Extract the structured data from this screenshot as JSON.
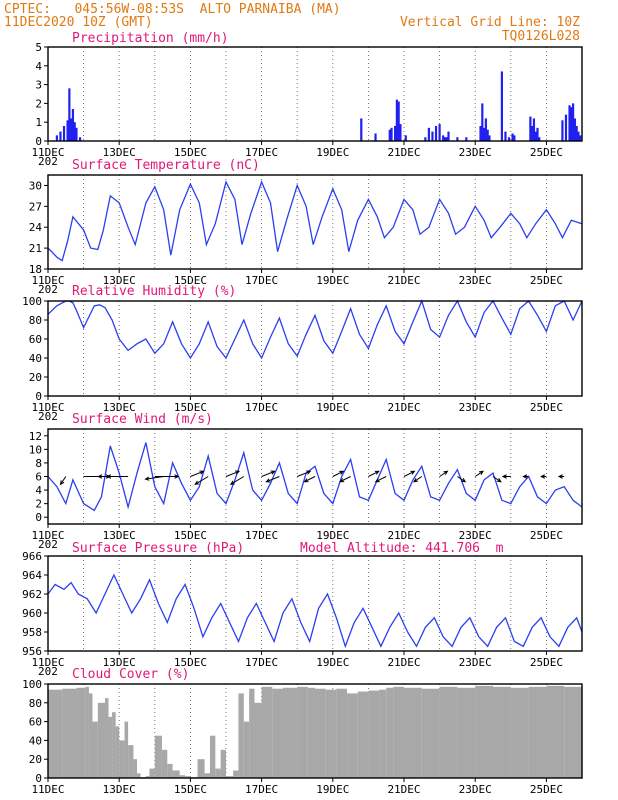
{
  "header": {
    "line1": "CPTEC:   045:56W-08:53S  ALTO PARNAIBA (MA)",
    "line2_left": "11DEC2020 10Z (GMT)",
    "line2_right": "Vertical Grid Line: 10Z",
    "line3_right": "TQ0126L028",
    "model_altitude": "Model Altitude: 441.706  m"
  },
  "colors": {
    "header": "#e07a14",
    "title": "#e0187a",
    "line": "#2b3ff0",
    "bar": "#2020f0",
    "cloud": "#a8a8a8"
  },
  "x_axis": {
    "day_range": [
      0,
      15
    ],
    "tick_days": [
      0,
      2,
      4,
      6,
      8,
      10,
      12,
      14
    ],
    "tick_labels": [
      "11DEC",
      "13DEC",
      "15DEC",
      "17DEC",
      "19DEC",
      "21DEC",
      "23DEC",
      "25DEC"
    ],
    "overflow_label": "202"
  },
  "chart_data": [
    {
      "id": "precip",
      "type": "bar",
      "title": "Precipitation (mm/h)",
      "ylim": [
        0,
        5
      ],
      "yticks": [
        0,
        1,
        2,
        3,
        4,
        5
      ],
      "x": [
        0.25,
        0.35,
        0.45,
        0.55,
        0.6,
        0.65,
        0.7,
        0.75,
        0.8,
        0.9,
        8.8,
        9.2,
        9.6,
        9.65,
        9.75,
        9.8,
        9.85,
        9.9,
        10.05,
        10.6,
        10.7,
        10.8,
        10.9,
        11.0,
        11.1,
        11.15,
        11.2,
        11.25,
        11.5,
        11.75,
        12.15,
        12.2,
        12.25,
        12.3,
        12.35,
        12.4,
        12.75,
        12.85,
        12.95,
        13.05,
        13.1,
        13.55,
        13.6,
        13.65,
        13.7,
        13.75,
        13.8,
        14.45,
        14.55,
        14.65,
        14.7,
        14.75,
        14.8,
        14.85,
        14.9,
        14.95
      ],
      "values": [
        0.3,
        0.5,
        0.8,
        1.1,
        2.8,
        1.2,
        1.7,
        1.0,
        0.7,
        0.2,
        1.2,
        0.4,
        0.6,
        0.7,
        0.8,
        2.2,
        2.1,
        0.9,
        0.3,
        0.2,
        0.7,
        0.5,
        0.8,
        0.9,
        0.3,
        0.2,
        0.2,
        0.5,
        0.2,
        0.2,
        0.8,
        2.0,
        0.7,
        1.2,
        0.6,
        0.3,
        3.7,
        0.5,
        0.2,
        0.4,
        0.3,
        1.3,
        0.8,
        1.2,
        0.5,
        0.7,
        0.2,
        1.1,
        1.4,
        1.9,
        1.8,
        2.0,
        1.2,
        0.8,
        0.5,
        0.3
      ]
    },
    {
      "id": "temp",
      "type": "line",
      "title": "Surface Temperature (nC)",
      "ylim": [
        18,
        31.5
      ],
      "yticks": [
        18,
        21,
        24,
        27,
        30
      ],
      "x": [
        0.0,
        0.1,
        0.25,
        0.4,
        0.55,
        0.7,
        1.0,
        1.2,
        1.4,
        1.55,
        1.75,
        2.0,
        2.25,
        2.45,
        2.75,
        3.0,
        3.25,
        3.45,
        3.7,
        4.0,
        4.25,
        4.45,
        4.7,
        5.0,
        5.25,
        5.45,
        5.7,
        6.0,
        6.25,
        6.45,
        6.7,
        7.0,
        7.25,
        7.45,
        7.7,
        8.0,
        8.25,
        8.45,
        8.7,
        9.0,
        9.25,
        9.45,
        9.7,
        10.0,
        10.25,
        10.45,
        10.7,
        11.0,
        11.25,
        11.45,
        11.7,
        12.0,
        12.25,
        12.45,
        12.7,
        13.0,
        13.25,
        13.45,
        13.7,
        14.0,
        14.25,
        14.45,
        14.7,
        15.0
      ],
      "values": [
        21.0,
        20.5,
        19.7,
        19.2,
        22.0,
        25.5,
        23.6,
        21.0,
        20.8,
        23.5,
        28.5,
        27.5,
        24.0,
        21.5,
        27.5,
        29.8,
        26.5,
        20.0,
        26.5,
        30.2,
        27.5,
        21.5,
        24.5,
        30.5,
        28.0,
        21.5,
        26.0,
        30.5,
        27.5,
        20.5,
        25.0,
        30.0,
        27.0,
        21.5,
        25.5,
        29.5,
        26.5,
        20.5,
        25.0,
        28.0,
        25.5,
        22.5,
        24.0,
        28.0,
        26.5,
        23.0,
        24.0,
        28.0,
        26.0,
        23.0,
        24.0,
        27.0,
        25.0,
        22.5,
        24.0,
        26.0,
        24.5,
        22.5,
        24.5,
        26.5,
        24.5,
        22.5,
        25.0,
        24.5
      ]
    },
    {
      "id": "rh",
      "type": "line",
      "title": "Relative Humidity (%)",
      "ylim": [
        0,
        100
      ],
      "yticks": [
        0,
        20,
        40,
        60,
        80,
        100
      ],
      "x": [
        0.0,
        0.25,
        0.5,
        0.6,
        0.7,
        0.8,
        1.0,
        1.3,
        1.45,
        1.6,
        1.8,
        2.0,
        2.25,
        2.5,
        2.75,
        3.0,
        3.25,
        3.5,
        3.75,
        4.0,
        4.25,
        4.5,
        4.75,
        5.0,
        5.25,
        5.5,
        5.75,
        6.0,
        6.25,
        6.5,
        6.75,
        7.0,
        7.25,
        7.5,
        7.75,
        8.0,
        8.25,
        8.5,
        8.75,
        9.0,
        9.25,
        9.5,
        9.75,
        10.0,
        10.25,
        10.5,
        10.75,
        11.0,
        11.25,
        11.5,
        11.75,
        12.0,
        12.25,
        12.5,
        12.75,
        13.0,
        13.25,
        13.5,
        13.75,
        14.0,
        14.25,
        14.5,
        14.75,
        15.0
      ],
      "values": [
        86,
        95,
        100,
        100,
        98,
        90,
        72,
        95,
        96,
        93,
        80,
        60,
        48,
        55,
        60,
        45,
        55,
        78,
        55,
        40,
        55,
        78,
        52,
        40,
        60,
        80,
        55,
        40,
        62,
        82,
        55,
        42,
        65,
        85,
        58,
        45,
        68,
        92,
        65,
        50,
        75,
        95,
        68,
        55,
        78,
        100,
        70,
        62,
        85,
        100,
        78,
        62,
        88,
        100,
        82,
        65,
        92,
        100,
        85,
        68,
        95,
        100,
        80,
        100
      ]
    },
    {
      "id": "wind",
      "type": "line",
      "title": "Surface Wind (m/s)",
      "ylim": [
        -1,
        13
      ],
      "yticks": [
        0,
        2,
        4,
        6,
        8,
        10,
        12
      ],
      "x": [
        0.0,
        0.25,
        0.5,
        0.7,
        1.0,
        1.3,
        1.5,
        1.75,
        2.0,
        2.25,
        2.5,
        2.75,
        3.0,
        3.25,
        3.5,
        3.75,
        4.0,
        4.25,
        4.5,
        4.75,
        5.0,
        5.25,
        5.5,
        5.75,
        6.0,
        6.25,
        6.5,
        6.75,
        7.0,
        7.25,
        7.5,
        7.75,
        8.0,
        8.25,
        8.5,
        8.75,
        9.0,
        9.25,
        9.5,
        9.75,
        10.0,
        10.25,
        10.5,
        10.75,
        11.0,
        11.25,
        11.5,
        11.75,
        12.0,
        12.25,
        12.5,
        12.75,
        13.0,
        13.25,
        13.5,
        13.75,
        14.0,
        14.25,
        14.5,
        14.75,
        15.0
      ],
      "values": [
        6.0,
        4.5,
        2.0,
        5.5,
        2.0,
        1.0,
        3.0,
        10.5,
        6.5,
        1.5,
        6.5,
        11.0,
        4.5,
        2.0,
        8.0,
        5.0,
        2.5,
        4.5,
        9.0,
        3.5,
        2.0,
        5.5,
        9.5,
        4.0,
        2.5,
        5.0,
        8.0,
        3.5,
        2.0,
        6.5,
        7.5,
        3.5,
        2.0,
        6.0,
        8.5,
        3.0,
        2.5,
        5.5,
        8.5,
        3.5,
        2.5,
        5.5,
        7.5,
        3.0,
        2.5,
        5.0,
        7.0,
        3.5,
        2.5,
        5.5,
        6.5,
        2.5,
        2.0,
        4.5,
        6.0,
        3.0,
        2.0,
        4.0,
        4.5,
        2.5,
        1.5
      ],
      "vectors": {
        "x": [
          0.5,
          1.0,
          2.0,
          2.25,
          3.0,
          3.25,
          4.0,
          4.5,
          5.0,
          5.5,
          6.0,
          6.5,
          7.0,
          7.5,
          8.0,
          8.5,
          9.0,
          9.5,
          10.0,
          10.5,
          11.0,
          11.5,
          12.0,
          12.5,
          13.0,
          13.5,
          14.0,
          14.5
        ],
        "u": [
          -2,
          10,
          -8,
          -8,
          9,
          -7,
          5,
          -5,
          5,
          -5,
          5,
          -5,
          5,
          -4,
          4,
          -4,
          4,
          -4,
          4,
          -3,
          3,
          3,
          3,
          3,
          -3,
          -2,
          -2,
          -2
        ],
        "v": [
          -3,
          0,
          0,
          0,
          0,
          -1,
          2,
          -3,
          2,
          -3,
          2,
          -2,
          2,
          -2,
          2,
          -2,
          2,
          -2,
          2,
          -2,
          2,
          -2,
          2,
          -2,
          0,
          0,
          0,
          0
        ]
      }
    },
    {
      "id": "pres",
      "type": "line",
      "title": "Surface Pressure (hPa)",
      "ylim": [
        956,
        966
      ],
      "yticks": [
        956,
        958,
        960,
        962,
        964,
        966
      ],
      "x": [
        0.0,
        0.2,
        0.45,
        0.65,
        0.85,
        1.1,
        1.35,
        1.6,
        1.85,
        2.1,
        2.35,
        2.6,
        2.85,
        3.1,
        3.35,
        3.6,
        3.85,
        4.1,
        4.35,
        4.6,
        4.85,
        5.1,
        5.35,
        5.6,
        5.85,
        6.1,
        6.35,
        6.6,
        6.85,
        7.1,
        7.35,
        7.6,
        7.85,
        8.1,
        8.35,
        8.6,
        8.85,
        9.1,
        9.35,
        9.6,
        9.85,
        10.1,
        10.35,
        10.6,
        10.85,
        11.1,
        11.35,
        11.6,
        11.85,
        12.1,
        12.35,
        12.6,
        12.85,
        13.1,
        13.35,
        13.6,
        13.85,
        14.1,
        14.35,
        14.6,
        14.85,
        15.0
      ],
      "values": [
        962.0,
        963.0,
        962.5,
        963.2,
        962.0,
        961.5,
        960.0,
        962.0,
        964.0,
        962.0,
        960.0,
        961.5,
        963.5,
        961.0,
        959.0,
        961.5,
        963.0,
        960.5,
        957.5,
        959.5,
        961.0,
        959.0,
        957.0,
        959.5,
        961.0,
        959.0,
        957.0,
        960.0,
        961.5,
        959.0,
        957.0,
        960.5,
        962.0,
        959.5,
        956.5,
        959.0,
        960.5,
        958.5,
        956.5,
        958.5,
        960.0,
        958.0,
        956.5,
        958.5,
        959.5,
        957.5,
        956.5,
        958.5,
        959.5,
        957.5,
        956.5,
        958.5,
        959.5,
        957.0,
        956.5,
        958.5,
        959.5,
        957.5,
        956.5,
        958.5,
        959.5,
        958.0
      ]
    },
    {
      "id": "cloud",
      "type": "area",
      "title": "Cloud Cover (%)",
      "ylim": [
        0,
        100
      ],
      "yticks": [
        0,
        20,
        40,
        60,
        80,
        100
      ],
      "x": [
        0.0,
        0.4,
        0.8,
        1.05,
        1.15,
        1.25,
        1.4,
        1.6,
        1.7,
        1.8,
        1.9,
        2.0,
        2.15,
        2.25,
        2.4,
        2.5,
        2.6,
        2.75,
        2.85,
        3.0,
        3.2,
        3.35,
        3.5,
        3.7,
        3.85,
        4.0,
        4.2,
        4.4,
        4.55,
        4.7,
        4.85,
        5.0,
        5.2,
        5.35,
        5.5,
        5.65,
        5.8,
        6.0,
        6.3,
        6.6,
        7.0,
        7.3,
        7.5,
        7.8,
        8.1,
        8.4,
        8.7,
        9.0,
        9.3,
        9.5,
        9.7,
        10.0,
        10.5,
        11.0,
        11.5,
        12.0,
        12.5,
        13.0,
        13.5,
        14.0,
        14.5,
        15.0
      ],
      "values": [
        94,
        95,
        96,
        97,
        90,
        60,
        80,
        85,
        65,
        70,
        55,
        40,
        60,
        35,
        20,
        5,
        1,
        2,
        10,
        45,
        30,
        15,
        8,
        3,
        2,
        1,
        20,
        5,
        45,
        10,
        30,
        2,
        8,
        90,
        60,
        95,
        80,
        97,
        95,
        96,
        97,
        96,
        95,
        94,
        95,
        90,
        92,
        93,
        94,
        96,
        97,
        96,
        95,
        97,
        96,
        98,
        97,
        96,
        97,
        98,
        97,
        98
      ]
    }
  ]
}
